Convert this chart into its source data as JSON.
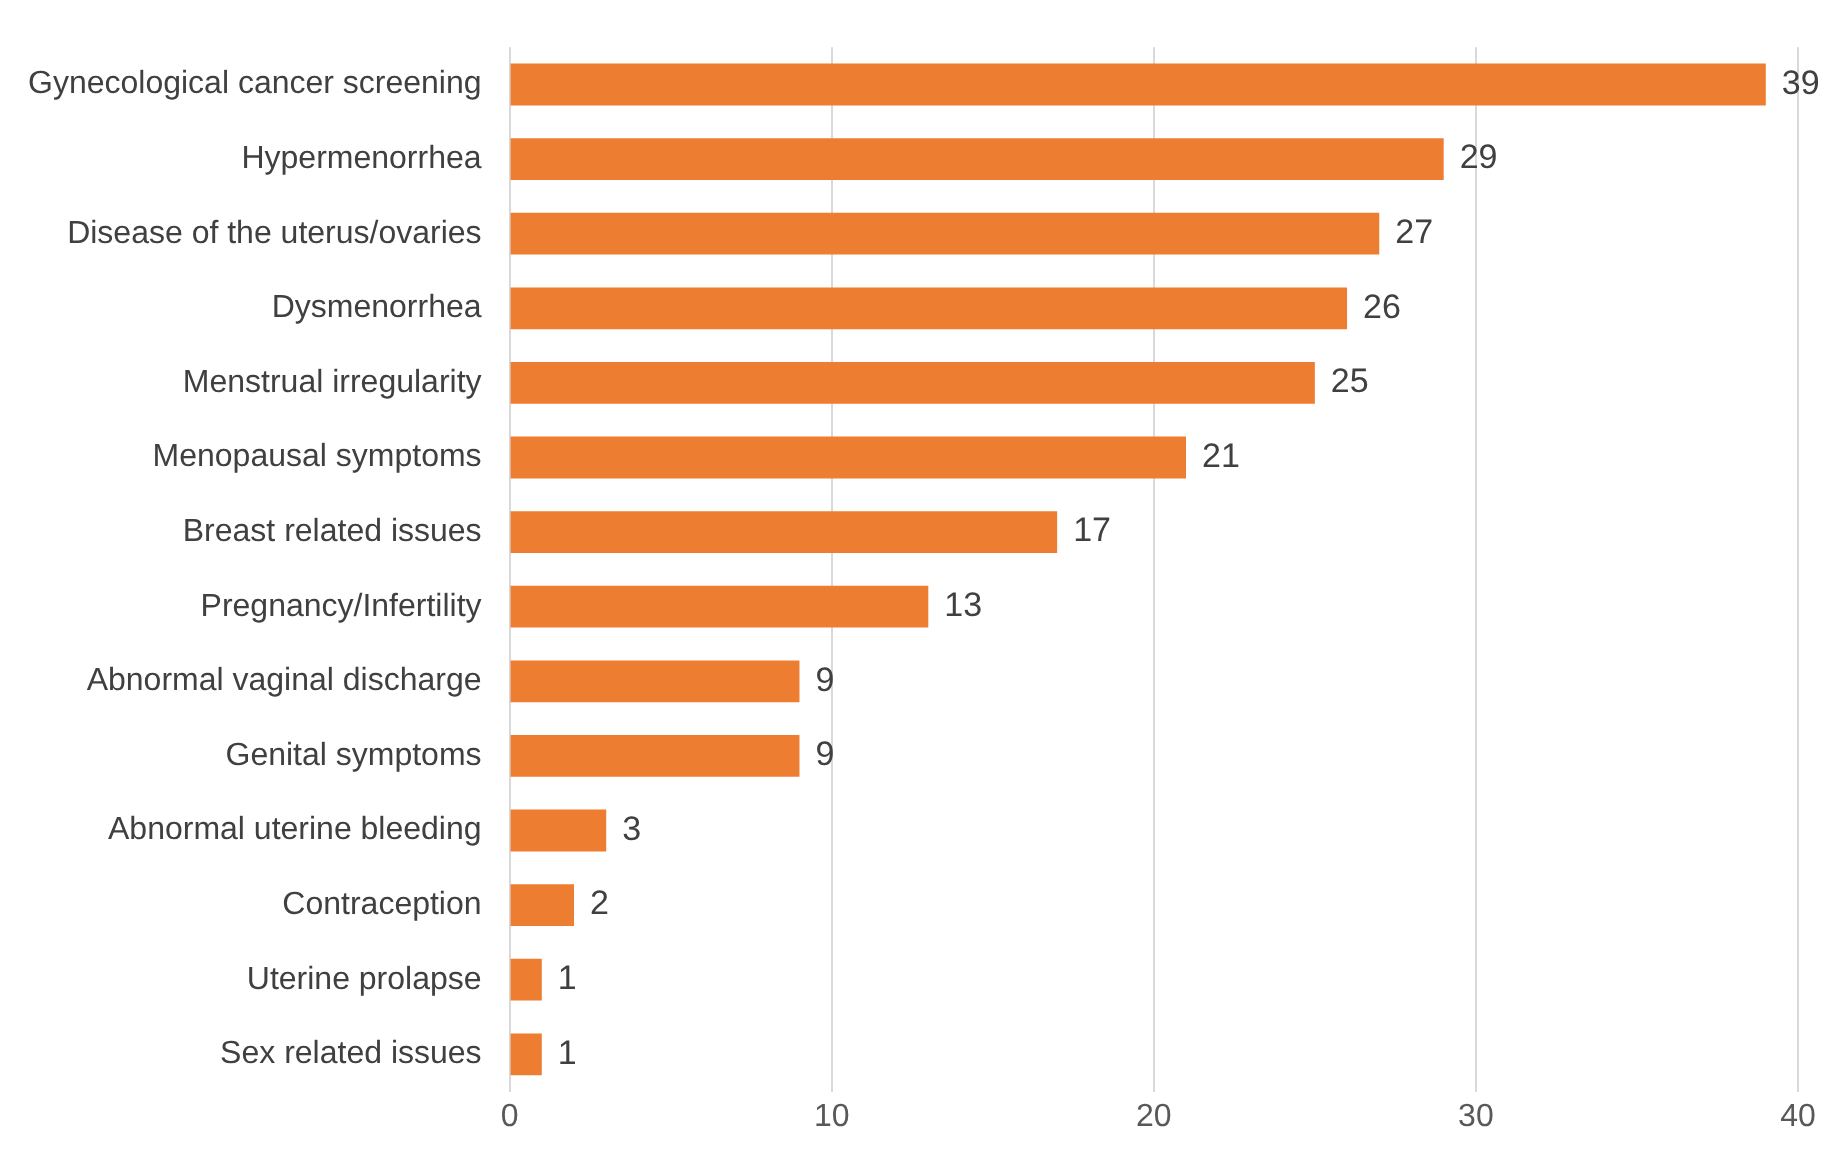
{
  "chart_data": {
    "type": "bar",
    "orientation": "horizontal",
    "categories": [
      "Gynecological cancer screening",
      "Hypermenorrhea",
      "Disease of the uterus/ovaries",
      "Dysmenorrhea",
      "Menstrual irregularity",
      "Menopausal symptoms",
      "Breast related issues",
      "Pregnancy/Infertility",
      "Abnormal vaginal discharge",
      "Genital symptoms",
      "Abnormal uterine bleeding",
      "Contraception",
      "Uterine prolapse",
      "Sex related issues"
    ],
    "values": [
      39,
      29,
      27,
      26,
      25,
      21,
      17,
      13,
      9,
      9,
      3,
      2,
      1,
      1
    ],
    "color": "#ed7d31",
    "xlim": [
      0,
      40
    ],
    "xticks": [
      0,
      10,
      20,
      30,
      40
    ],
    "grid": "x",
    "data_labels": true
  }
}
